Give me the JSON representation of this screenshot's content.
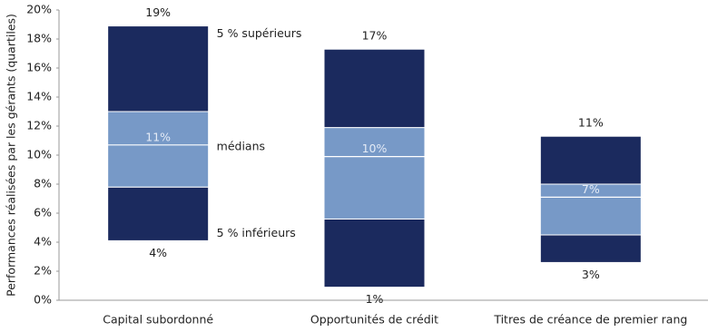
{
  "chart_data": {
    "type": "box",
    "ylabel": "Performances réalisées par les gérants (quartiles)",
    "categories": [
      "Capital subordonné",
      "Opportunités de crédit",
      "Titres de créance de premier rang"
    ],
    "high": [
      18.9,
      17.3,
      11.3
    ],
    "high_labels": [
      "19%",
      "17%",
      "11%"
    ],
    "q3": [
      13.0,
      11.9,
      8.0
    ],
    "median": [
      10.7,
      9.9,
      7.1
    ],
    "median_labels": [
      "11%",
      "10%",
      "7%"
    ],
    "q1": [
      7.8,
      5.6,
      4.5
    ],
    "low": [
      4.1,
      0.9,
      2.6
    ],
    "low_labels": [
      "4%",
      "1%",
      "3%"
    ],
    "annotations": [
      "5 % supérieurs",
      "médians",
      "5 % inférieurs"
    ],
    "outer_color": "#1b2a5e",
    "inner_color": "#7799c7",
    "ylim": [
      0,
      20
    ],
    "yticks": [
      {
        "value": 0,
        "label": "0%"
      },
      {
        "value": 2,
        "label": "2%"
      },
      {
        "value": 4,
        "label": "4%"
      },
      {
        "value": 6,
        "label": "6%"
      },
      {
        "value": 8,
        "label": "8%"
      },
      {
        "value": 10,
        "label": "10%"
      },
      {
        "value": 12,
        "label": "12%"
      },
      {
        "value": 14,
        "label": "14%"
      },
      {
        "value": 16,
        "label": "16%"
      },
      {
        "value": 18,
        "label": "18%"
      },
      {
        "value": 20,
        "label": "20%"
      }
    ],
    "grid": false
  }
}
